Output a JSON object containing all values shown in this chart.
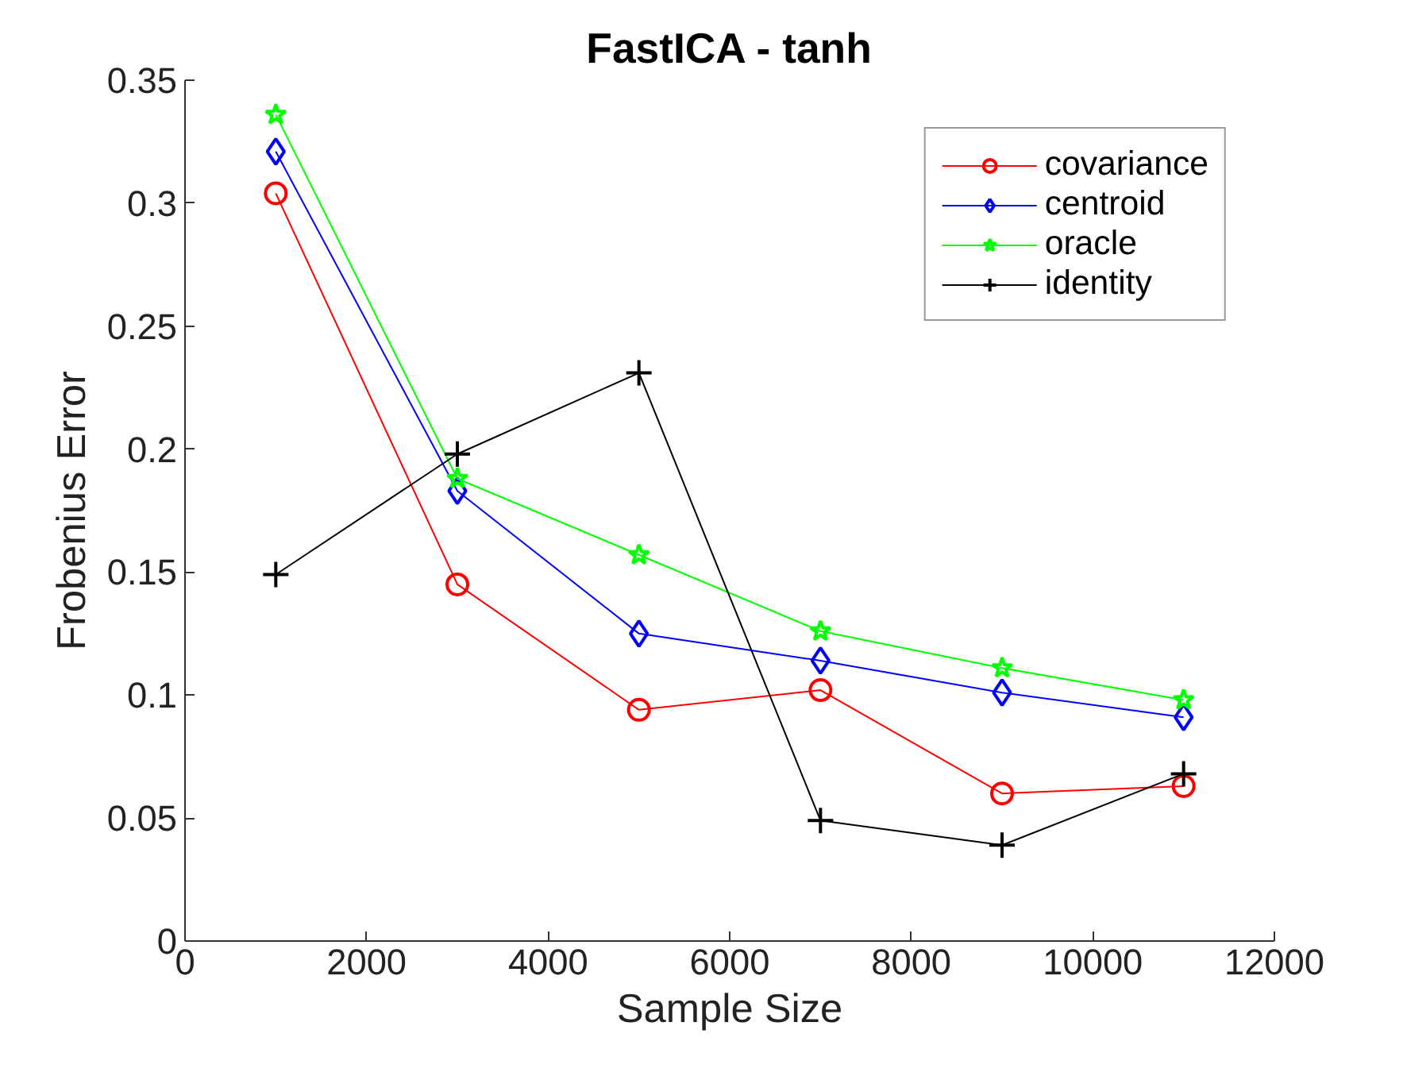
{
  "chart_data": {
    "type": "line",
    "title": "FastICA - tanh",
    "xlabel": "Sample Size",
    "ylabel": "Frobenius Error",
    "x": [
      1000,
      3000,
      5000,
      7000,
      9000,
      11000
    ],
    "series": [
      {
        "name": "covariance",
        "color": "#ff0000",
        "marker": "circle",
        "values": [
          0.304,
          0.145,
          0.094,
          0.102,
          0.06,
          0.063
        ]
      },
      {
        "name": "centroid",
        "color": "#0000ff",
        "marker": "diamond",
        "values": [
          0.321,
          0.183,
          0.125,
          0.114,
          0.101,
          0.091
        ]
      },
      {
        "name": "oracle",
        "color": "#00ff00",
        "marker": "star",
        "values": [
          0.336,
          0.188,
          0.157,
          0.126,
          0.111,
          0.098
        ]
      },
      {
        "name": "identity",
        "color": "#000000",
        "marker": "cross",
        "values": [
          0.149,
          0.198,
          0.231,
          0.049,
          0.039,
          0.068
        ]
      }
    ],
    "xlim": [
      0,
      12000
    ],
    "xticks": [
      0,
      2000,
      4000,
      6000,
      8000,
      10000,
      12000
    ],
    "ylim": [
      0,
      0.35
    ],
    "yticks": [
      0,
      0.05,
      0.1,
      0.15,
      0.2,
      0.25,
      0.3,
      0.35
    ],
    "legend": "top right",
    "line_style": "solid"
  }
}
